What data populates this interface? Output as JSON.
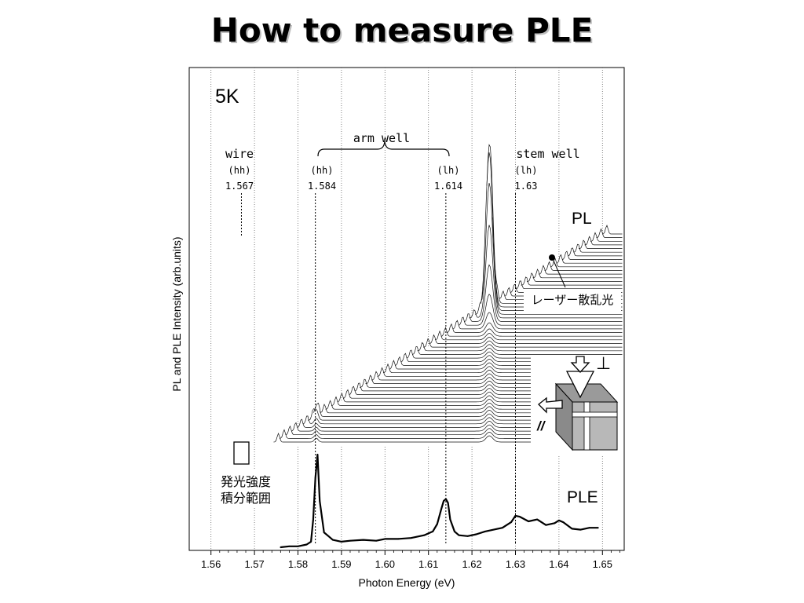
{
  "slide": {
    "title": "How to measure PLE"
  },
  "chart_data": {
    "type": "line",
    "title": "",
    "xlabel": "Photon Energy (eV)",
    "ylabel": "PL and PLE Intensity (arb.units)",
    "xlim": [
      1.555,
      1.655
    ],
    "xticks": [
      "1.56",
      "1.57",
      "1.58",
      "1.59",
      "1.60",
      "1.61",
      "1.62",
      "1.63",
      "1.64",
      "1.65"
    ],
    "grid": "vertical dotted",
    "temperature_label": "5K",
    "annotations": {
      "wire": "wire",
      "arm_well": "arm well",
      "stem_well": "stem well",
      "hh": "(hh)",
      "lh": "(lh)",
      "e_wire": "1.567",
      "e_arm_hh": "1.584",
      "e_arm_lh": "1.614",
      "e_stem_lh": "1.63",
      "pl": "PL",
      "ple": "PLE",
      "laser": "レーザー散乱光",
      "window_line1": "発光強度",
      "window_line2": "積分範囲",
      "perp": "⊥",
      "parallel": "//"
    },
    "marker_energies": [
      1.567,
      1.584,
      1.614,
      1.63
    ],
    "pl_peaks": [
      {
        "x": 1.567,
        "label": "wire"
      },
      {
        "x": 1.584,
        "label": "arm well (hh)"
      },
      {
        "x": 1.624,
        "label": "stem well"
      }
    ],
    "series": [
      {
        "name": "PLE",
        "x": [
          1.576,
          1.578,
          1.58,
          1.582,
          1.583,
          1.5835,
          1.584,
          1.5845,
          1.585,
          1.586,
          1.587,
          1.588,
          1.59,
          1.592,
          1.595,
          1.598,
          1.6,
          1.603,
          1.606,
          1.609,
          1.611,
          1.612,
          1.613,
          1.6135,
          1.614,
          1.6145,
          1.615,
          1.616,
          1.617,
          1.619,
          1.621,
          1.623,
          1.625,
          1.627,
          1.629,
          1.63,
          1.631,
          1.633,
          1.635,
          1.637,
          1.639,
          1.64,
          1.641,
          1.643,
          1.645,
          1.647,
          1.649
        ],
        "values": [
          0.0,
          0.01,
          0.01,
          0.03,
          0.06,
          0.3,
          0.75,
          1.0,
          0.5,
          0.16,
          0.12,
          0.08,
          0.06,
          0.07,
          0.08,
          0.07,
          0.09,
          0.09,
          0.1,
          0.13,
          0.17,
          0.25,
          0.42,
          0.5,
          0.52,
          0.48,
          0.3,
          0.17,
          0.13,
          0.12,
          0.14,
          0.17,
          0.19,
          0.21,
          0.27,
          0.34,
          0.33,
          0.28,
          0.3,
          0.24,
          0.26,
          0.29,
          0.27,
          0.2,
          0.19,
          0.21,
          0.21
        ]
      }
    ]
  }
}
